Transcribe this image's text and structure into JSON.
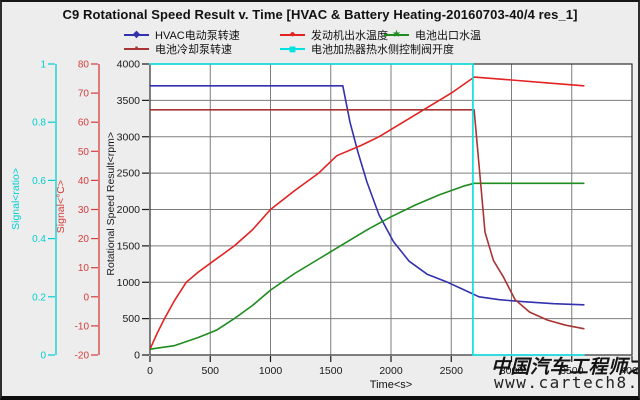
{
  "window": {
    "title": "C9 Rotational Speed Result v. Time [HVAC & Battery Heating-20160703-40/4 res_1]"
  },
  "watermark": {
    "line1": "中国汽车工程师之家",
    "line2": "www.cartech8.com"
  },
  "colors": {
    "background": "#ededed",
    "plot_background": "#ffffff",
    "grid": "#7d7d7d",
    "plot_border": "#303030",
    "text": "#111111"
  },
  "chart_data": {
    "type": "line",
    "title": "C9 Rotational Speed Result v. Time [HVAC & Battery Heating-20160703-40/4 res_1]",
    "grid": true,
    "legend_position": "top",
    "x_axis": {
      "label": "Time<s>",
      "min": 0,
      "max": 4000,
      "ticks": [
        0,
        500,
        1000,
        1500,
        2000,
        2500,
        3000,
        3500,
        4000
      ]
    },
    "y_axes": [
      {
        "id": "ratio",
        "label": "Signal<ratio>",
        "min": 0,
        "max": 1,
        "ticks": [
          0,
          0.2,
          0.4,
          0.6,
          0.8,
          1
        ],
        "color": "#00cfcf"
      },
      {
        "id": "celsius",
        "label": "Signal<°C>",
        "min": -20,
        "max": 80,
        "ticks": [
          -20,
          -10,
          0,
          10,
          20,
          30,
          40,
          50,
          60,
          70,
          80
        ],
        "color": "#d53c3c"
      },
      {
        "id": "rpm",
        "label": "Rotational Speed Result<rpm>",
        "min": 0,
        "max": 4000,
        "ticks": [
          0,
          500,
          1000,
          1500,
          2000,
          2500,
          3000,
          3500,
          4000
        ],
        "color": "#1a1a1a"
      }
    ],
    "series": [
      {
        "name": "HVAC电动泵转速",
        "axis": "rpm",
        "color": "#3232ae",
        "marker": "diamond",
        "points": [
          [
            0,
            3700
          ],
          [
            1600,
            3700
          ],
          [
            1660,
            3200
          ],
          [
            1725,
            2790
          ],
          [
            1800,
            2380
          ],
          [
            1900,
            1930
          ],
          [
            2020,
            1560
          ],
          [
            2150,
            1290
          ],
          [
            2300,
            1110
          ],
          [
            2470,
            1000
          ],
          [
            2600,
            900
          ],
          [
            2730,
            800
          ],
          [
            2900,
            760
          ],
          [
            3100,
            732
          ],
          [
            3350,
            705
          ],
          [
            3600,
            690
          ]
        ]
      },
      {
        "name": "发动机出水温度",
        "axis": "celsius",
        "color": "#e32222",
        "marker": "circle",
        "points": [
          [
            0,
            -18
          ],
          [
            60,
            -12.5
          ],
          [
            120,
            -7.5
          ],
          [
            200,
            -1.5
          ],
          [
            300,
            5
          ],
          [
            400,
            8.5
          ],
          [
            500,
            11.5
          ],
          [
            600,
            14.5
          ],
          [
            700,
            17.5
          ],
          [
            850,
            23
          ],
          [
            1000,
            30
          ],
          [
            1200,
            36.5
          ],
          [
            1400,
            42.5
          ],
          [
            1550,
            48.5
          ],
          [
            1750,
            52
          ],
          [
            1900,
            55
          ],
          [
            2100,
            60
          ],
          [
            2300,
            65
          ],
          [
            2500,
            70
          ],
          [
            2690,
            75.5
          ],
          [
            3000,
            74.5
          ],
          [
            3300,
            73.5
          ],
          [
            3600,
            72.5
          ]
        ]
      },
      {
        "name": "电池出口水温",
        "axis": "celsius",
        "color": "#1f8c1f",
        "marker": "star",
        "points": [
          [
            0,
            -18
          ],
          [
            200,
            -16.8
          ],
          [
            400,
            -14
          ],
          [
            550,
            -11.5
          ],
          [
            700,
            -7.5
          ],
          [
            850,
            -3
          ],
          [
            1000,
            2.3
          ],
          [
            1200,
            8
          ],
          [
            1400,
            13
          ],
          [
            1600,
            18
          ],
          [
            1800,
            23
          ],
          [
            2000,
            27.5
          ],
          [
            2200,
            31.5
          ],
          [
            2400,
            35
          ],
          [
            2600,
            38
          ],
          [
            2690,
            39
          ],
          [
            3600,
            39
          ]
        ]
      },
      {
        "name": "电池冷却泵转速",
        "axis": "rpm",
        "color": "#a83434",
        "marker": "square-small",
        "points": [
          [
            0,
            3370
          ],
          [
            2690,
            3370
          ],
          [
            2780,
            1690
          ],
          [
            2850,
            1300
          ],
          [
            2930,
            1080
          ],
          [
            3030,
            760
          ],
          [
            3150,
            590
          ],
          [
            3300,
            480
          ],
          [
            3450,
            410
          ],
          [
            3600,
            362
          ]
        ]
      },
      {
        "name": "电池加热器热水侧控制阀开度",
        "axis": "ratio",
        "color": "#00e2e2",
        "marker": "square",
        "points": [
          [
            0,
            1
          ],
          [
            2680,
            1
          ],
          [
            2680,
            0
          ],
          [
            3600,
            0
          ]
        ]
      }
    ]
  }
}
